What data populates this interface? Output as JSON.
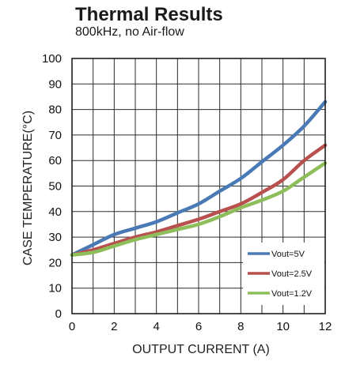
{
  "chart_data": {
    "type": "line",
    "title": "Thermal Results",
    "subtitle": "800kHz, no Air-flow",
    "xlabel": "OUTPUT CURRENT (A)",
    "ylabel": "CASE TEMPERATURE(°C)",
    "xlim": [
      0,
      12
    ],
    "ylim": [
      0,
      100
    ],
    "xticks": [
      0,
      2,
      4,
      6,
      8,
      10,
      12
    ],
    "xtick_labels": [
      "0",
      "2",
      "4",
      "6",
      "8",
      "10",
      "12"
    ],
    "yticks": [
      0,
      10,
      20,
      30,
      40,
      50,
      60,
      70,
      80,
      90,
      100
    ],
    "ytick_labels": [
      "0",
      "10",
      "20",
      "30",
      "40",
      "50",
      "60",
      "70",
      "80",
      "90",
      "100"
    ],
    "grid": true,
    "legend_position": "bottom-right",
    "series": [
      {
        "name": "Vout=5V",
        "color": "#4a7ab5",
        "x": [
          0,
          1,
          2,
          3,
          4,
          5,
          6,
          7,
          8,
          9,
          10,
          11,
          12
        ],
        "y": [
          23,
          27,
          31,
          33.5,
          36,
          39.5,
          43,
          48,
          53,
          59.5,
          66,
          73.5,
          83
        ]
      },
      {
        "name": "Vout=2.5V",
        "color": "#b8504e",
        "x": [
          0,
          1,
          2,
          3,
          4,
          5,
          6,
          7,
          8,
          9,
          10,
          11,
          12
        ],
        "y": [
          23,
          25,
          27.5,
          30,
          32,
          34.5,
          37,
          40,
          43,
          47.5,
          52.5,
          60,
          66
        ]
      },
      {
        "name": "Vout=1.2V",
        "color": "#8dbe5a",
        "x": [
          0,
          1,
          2,
          3,
          4,
          5,
          6,
          7,
          8,
          9,
          10,
          11,
          12
        ],
        "y": [
          23,
          24,
          26.5,
          29,
          31,
          33,
          35,
          38,
          41.5,
          44.5,
          48,
          53.5,
          59
        ]
      }
    ]
  }
}
